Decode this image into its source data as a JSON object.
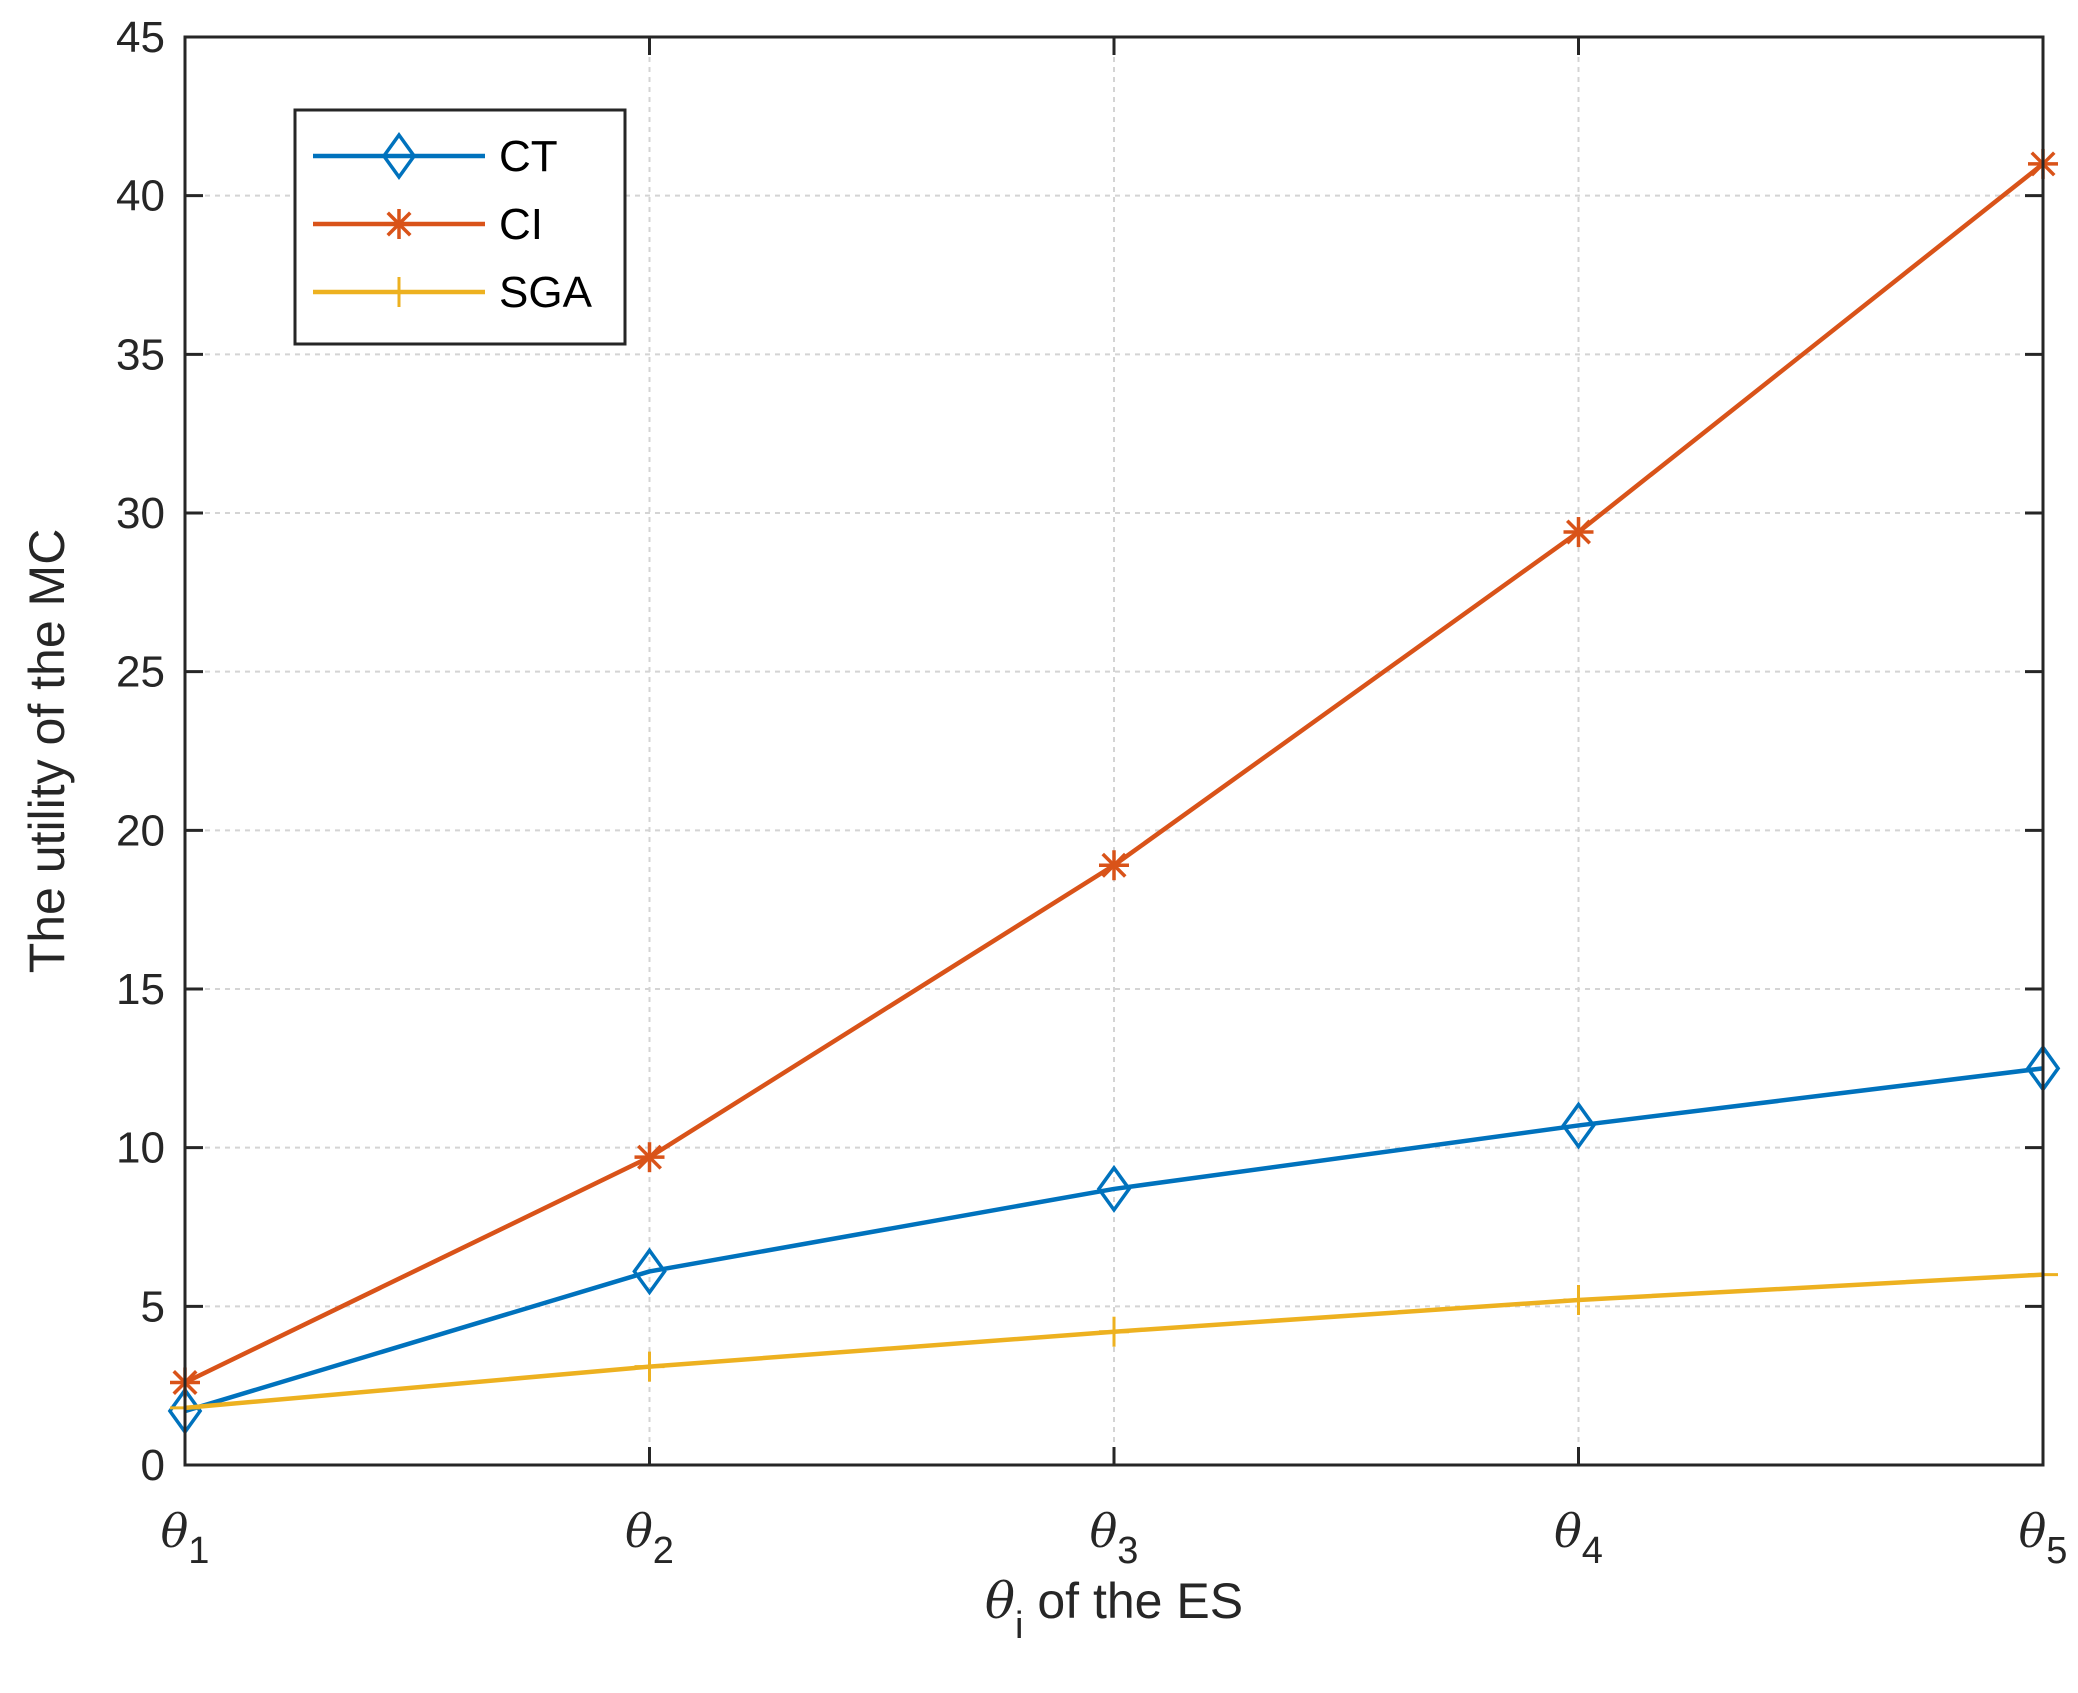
{
  "chart_data": {
    "type": "line",
    "title": "",
    "x": [
      "θ1",
      "θ2",
      "θ3",
      "θ4",
      "θ5"
    ],
    "x_ticks": [
      {
        "symbol": "θ",
        "sub": "1"
      },
      {
        "symbol": "θ",
        "sub": "2"
      },
      {
        "symbol": "θ",
        "sub": "3"
      },
      {
        "symbol": "θ",
        "sub": "4"
      },
      {
        "symbol": "θ",
        "sub": "5"
      }
    ],
    "xlabel": {
      "symbol": "θ",
      "sub": "i",
      "rest": "of the ES"
    },
    "ylabel": "The utility of the MC",
    "ylim": [
      0,
      45
    ],
    "yticks": [
      "0",
      "5",
      "10",
      "15",
      "20",
      "25",
      "30",
      "35",
      "40",
      "45"
    ],
    "grid": true,
    "legend_position": "top-left",
    "series": [
      {
        "name": "CT",
        "color": "#0072BD",
        "marker": "diamond",
        "values": [
          1.7,
          6.1,
          8.7,
          10.7,
          12.5
        ]
      },
      {
        "name": "CI",
        "color": "#D95319",
        "marker": "asterisk",
        "values": [
          2.6,
          9.7,
          18.9,
          29.4,
          41.0
        ]
      },
      {
        "name": "SGA",
        "color": "#EDB120",
        "marker": "plus",
        "values": [
          1.8,
          3.1,
          4.2,
          5.2,
          6.0
        ]
      }
    ]
  }
}
